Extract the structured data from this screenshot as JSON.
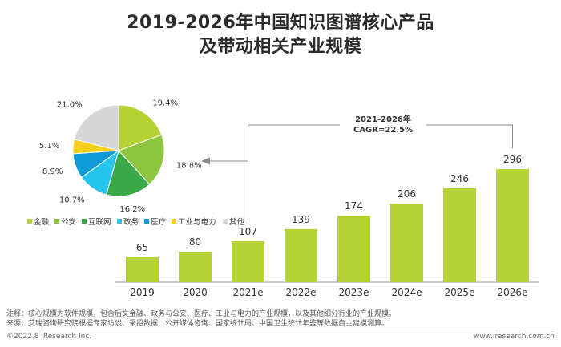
{
  "title_line1": "2019-2026年中国知识图谱核心产品",
  "title_line2": "及带动相关产业规模",
  "notes": {
    "line1": "注释：核心规模为软件规模，包含后文金融、政务与公安、医疗、工业与电力的产业规模，以及其他细分行业的产业规模。",
    "line2": "来源：艾瑞咨询研究院根据专家访谈、采招数据、公开媒体咨询、国家统计局、中国卫生统计年鉴等数据自主建模测算。"
  },
  "footer": {
    "left": "©2022.8 iResearch Inc.",
    "right": "www.iresearch.com.cn"
  },
  "chart_data": [
    {
      "type": "bar",
      "categories": [
        "2019",
        "2020",
        "2021e",
        "2022e",
        "2023e",
        "2024e",
        "2025e",
        "2026e"
      ],
      "values": [
        65,
        80,
        107,
        139,
        174,
        206,
        246,
        296
      ],
      "bar_color": "#b5d334",
      "annotation": {
        "line1": "2021-2026年",
        "line2": "CAGR=22.5%"
      },
      "legend": "none"
    },
    {
      "type": "pie",
      "labels": [
        "金融",
        "公安",
        "互联网",
        "政务",
        "医疗",
        "工业与电力",
        "其他"
      ],
      "values": [
        19.4,
        18.8,
        16.2,
        10.7,
        8.9,
        5.1,
        21.0
      ],
      "value_labels": [
        "19.4%",
        "18.8%",
        "16.2%",
        "10.7%",
        "8.9%",
        "5.1%",
        "21.0%"
      ],
      "colors": [
        "#b4d233",
        "#8cc63f",
        "#3aaa48",
        "#26c5ee",
        "#0e9bd8",
        "#f5d11c",
        "#d6d6d6"
      ],
      "legend": "bottom"
    }
  ]
}
